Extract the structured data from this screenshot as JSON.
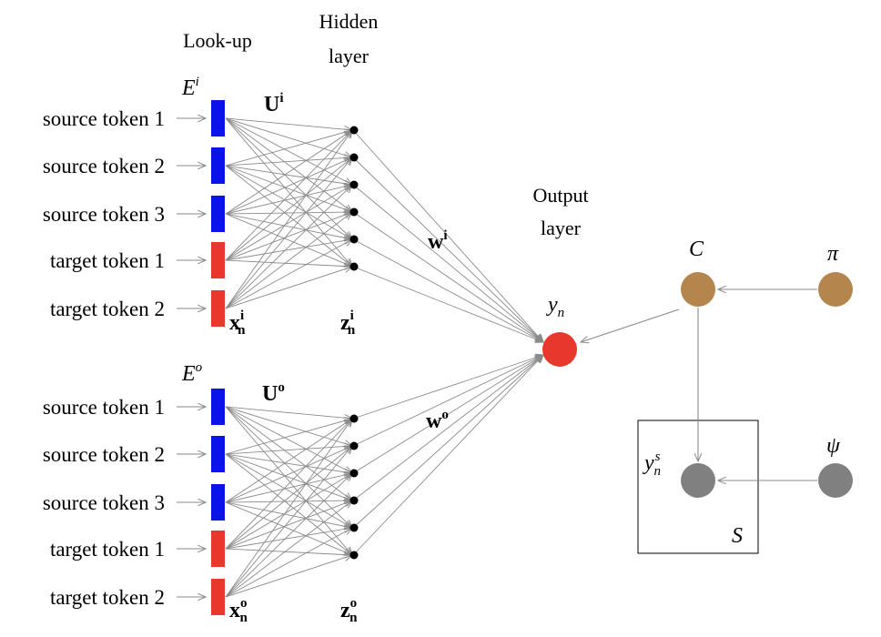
{
  "headers": {
    "lookup": "Look-up",
    "hidden_line1": "Hidden",
    "hidden_line2": "layer",
    "output_line1": "Output",
    "output_line2": "layer"
  },
  "input_block": {
    "embedding_base": "E",
    "embedding_sup": "i",
    "weight_base": "U",
    "weight_sup": "i",
    "x_base": "x",
    "x_sup": "i",
    "x_sub": "n",
    "z_base": "z",
    "z_sup": "i",
    "z_sub": "n",
    "w_base": "w",
    "w_sup": "i",
    "tokens": [
      "source token 1",
      "source token 2",
      "source token 3",
      "target token 1",
      "target token 2"
    ],
    "token_kinds": [
      "source",
      "source",
      "source",
      "target",
      "target"
    ]
  },
  "output_block": {
    "embedding_base": "E",
    "embedding_sup": "o",
    "weight_base": "U",
    "weight_sup": "o",
    "x_base": "x",
    "x_sup": "o",
    "x_sub": "n",
    "z_base": "z",
    "z_sup": "o",
    "z_sub": "n",
    "w_base": "w",
    "w_sup": "o",
    "tokens": [
      "source token 1",
      "source token 2",
      "source token 3",
      "target token 1",
      "target token 2"
    ],
    "token_kinds": [
      "source",
      "source",
      "source",
      "target",
      "target"
    ]
  },
  "output_node": {
    "base": "y",
    "sub": "n"
  },
  "graphical_model": {
    "c_label": "C",
    "pi_label": "π",
    "psi_label": "ψ",
    "ys_base": "y",
    "ys_sup": "s",
    "ys_sub": "n",
    "plate_label": "S"
  },
  "colors": {
    "source_embedding": "#0a14e6",
    "target_embedding": "#e8382e",
    "output_node": "#e8382e",
    "prior_node": "#b5854e",
    "observed_node": "#808080",
    "edge": "#8a8a8a"
  }
}
